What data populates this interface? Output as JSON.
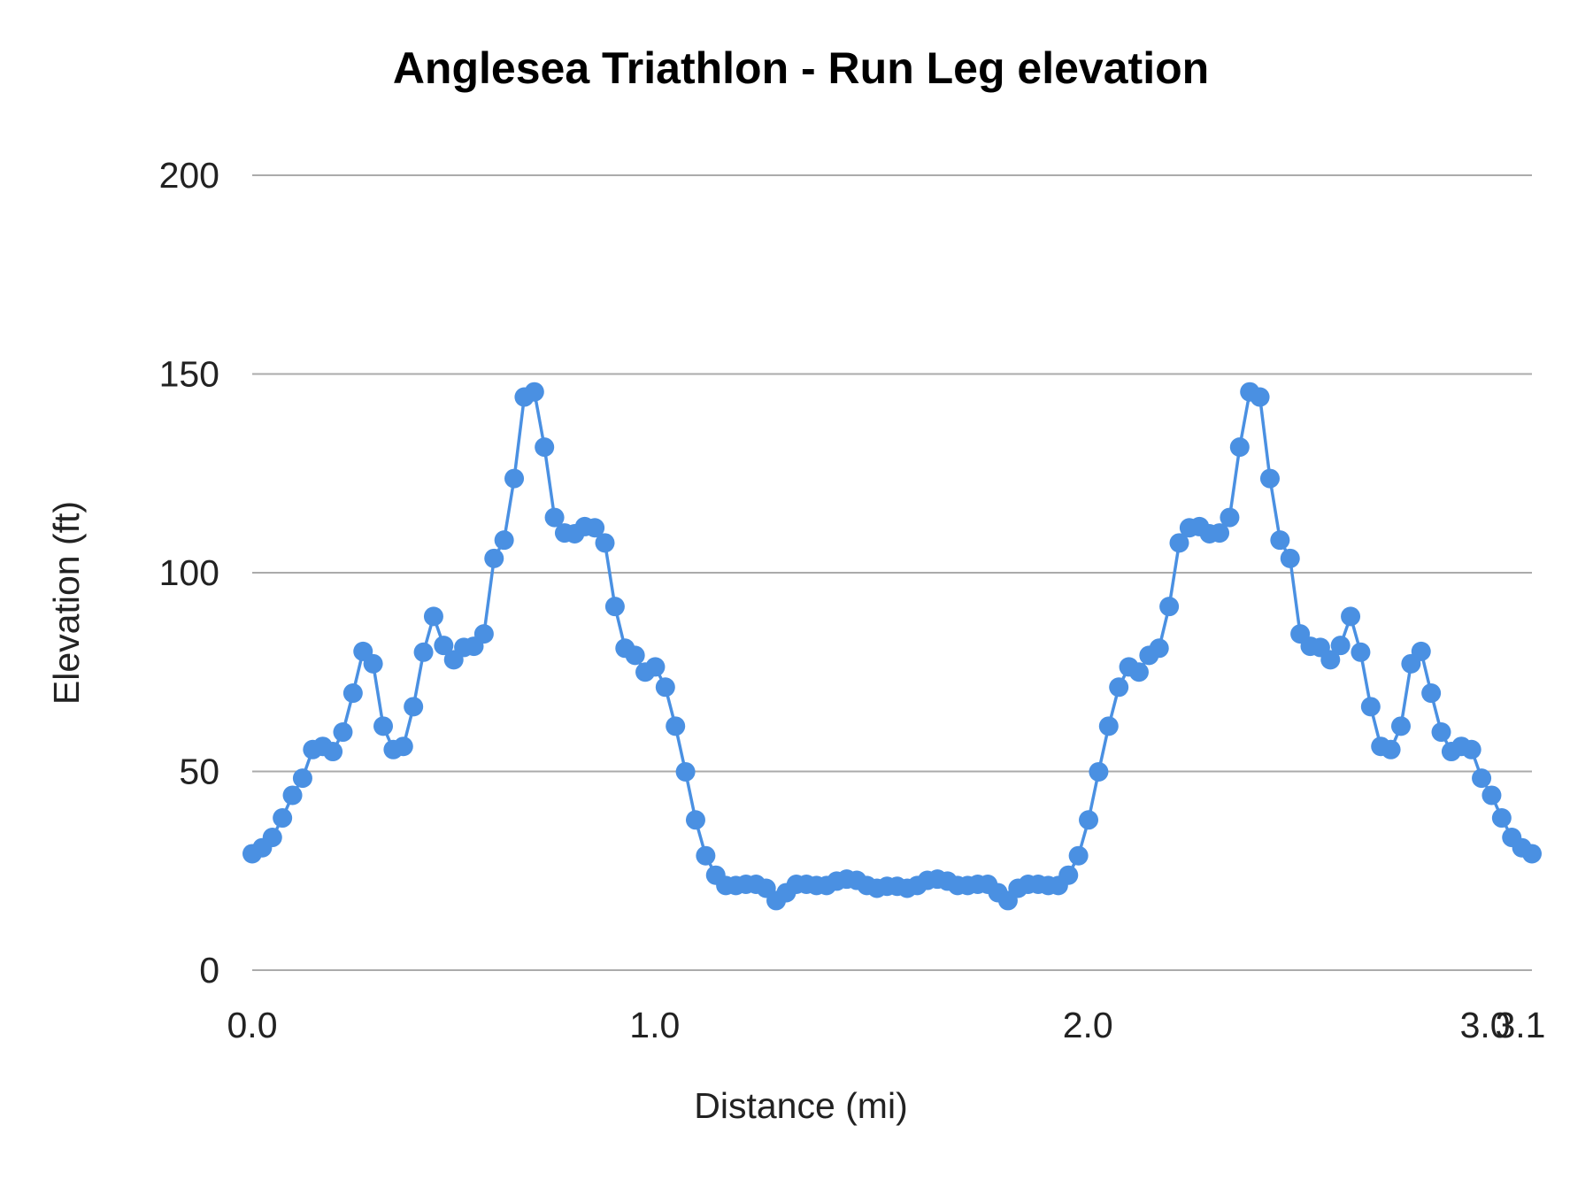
{
  "chart_data": {
    "type": "line",
    "title": "Anglesea Triathlon  - Run Leg  elevation",
    "xlabel": "Distance (mi)",
    "ylabel": "Elevation (ft)",
    "ylim": [
      0,
      200
    ],
    "y_ticks": [
      "0",
      "50",
      "100",
      "150",
      "200"
    ],
    "x_ticks": [
      "0.0",
      "1.0",
      "2.0",
      "3.0",
      "3.1"
    ],
    "grid": true,
    "legend": "none",
    "markers": true,
    "series_color": "#4a90e2",
    "grid_color": "#ababab",
    "series": [
      {
        "values": [
          29.3,
          30.8,
          33.4,
          38.3,
          44.0,
          48.3,
          55.5,
          56.3,
          55.0,
          59.9,
          69.7,
          80.2,
          77.1,
          61.4,
          55.5,
          56.3,
          66.3,
          80.0,
          89.0,
          81.7,
          78.1,
          81.2,
          81.5,
          84.6,
          103.6,
          108.2,
          123.7,
          144.2,
          145.5,
          131.6,
          113.9,
          110.0,
          109.8,
          111.6,
          111.3,
          107.5,
          91.5,
          81.0,
          79.2,
          75.0,
          76.3,
          71.2,
          61.4,
          49.9,
          37.8,
          28.8,
          23.9,
          21.3,
          21.3,
          21.6,
          21.6,
          20.6,
          17.5,
          19.5,
          21.6,
          21.6,
          21.3,
          21.3,
          22.4,
          22.9,
          22.6,
          21.3,
          20.6,
          21.1,
          21.1,
          20.6,
          21.3,
          22.6,
          22.9,
          22.4,
          21.3,
          21.3,
          21.6,
          21.6,
          19.5,
          17.5,
          20.6,
          21.6,
          21.6,
          21.3,
          21.3,
          23.9,
          28.8,
          37.8,
          49.9,
          61.4,
          71.2,
          76.3,
          75.0,
          79.2,
          81.0,
          91.5,
          107.5,
          111.3,
          111.6,
          109.8,
          110.0,
          113.9,
          131.6,
          145.5,
          144.2,
          123.7,
          108.2,
          103.6,
          84.6,
          81.5,
          81.2,
          78.1,
          81.7,
          89.0,
          80.0,
          66.3,
          56.3,
          55.5,
          61.4,
          77.1,
          80.2,
          69.7,
          59.9,
          55.0,
          56.3,
          55.5,
          48.3,
          44.0,
          38.3,
          33.4,
          30.8,
          29.3
        ]
      }
    ]
  }
}
